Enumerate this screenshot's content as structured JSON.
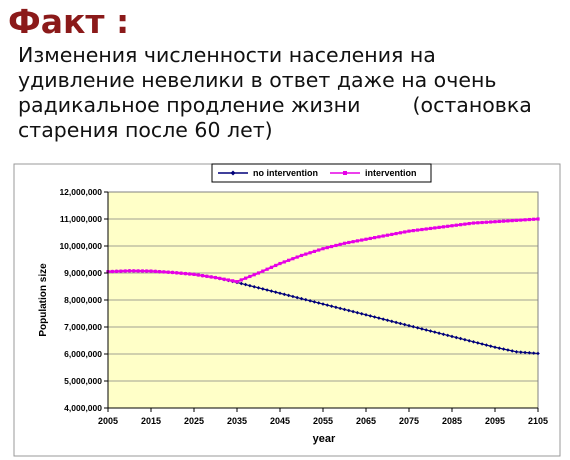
{
  "slide": {
    "heading": "Факт :",
    "subtitle_lines": [
      "Изменения численности населения на",
      "удивление невелики в ответ даже на очень",
      "радикальное продление жизни        (остановка",
      "старения после 60 лет)"
    ]
  },
  "chart_data": {
    "type": "line",
    "title": "",
    "xlabel": "year",
    "ylabel": "Population size",
    "xlim": [
      2005,
      2105
    ],
    "ylim": [
      4000000,
      12000000
    ],
    "x_ticks": [
      2005,
      2015,
      2025,
      2035,
      2045,
      2055,
      2065,
      2075,
      2085,
      2095,
      2105
    ],
    "y_ticks": [
      4000000,
      5000000,
      6000000,
      7000000,
      8000000,
      9000000,
      10000000,
      11000000,
      12000000
    ],
    "y_tick_labels": [
      "4,000,000",
      "5,000,000",
      "6,000,000",
      "7,000,000",
      "8,000,000",
      "9,000,000",
      "10,000,000",
      "11,000,000",
      "12,000,000"
    ],
    "grid": "horizontal",
    "legend_position": "top",
    "plot_background": "#ffffc8",
    "series": [
      {
        "name": "no intervention",
        "color": "#00007a",
        "marker": "diamond",
        "x": [
          2005,
          2010,
          2015,
          2020,
          2025,
          2030,
          2035,
          2040,
          2045,
          2050,
          2055,
          2060,
          2065,
          2070,
          2075,
          2080,
          2085,
          2090,
          2095,
          2100,
          2105
        ],
        "values": [
          9050000,
          9080000,
          9070000,
          9020000,
          8950000,
          8830000,
          8650000,
          8450000,
          8250000,
          8050000,
          7850000,
          7650000,
          7450000,
          7250000,
          7050000,
          6850000,
          6650000,
          6450000,
          6250000,
          6080000,
          6020000
        ]
      },
      {
        "name": "intervention",
        "color": "#e600e6",
        "marker": "square",
        "x": [
          2005,
          2010,
          2015,
          2020,
          2025,
          2030,
          2035,
          2040,
          2045,
          2050,
          2055,
          2060,
          2065,
          2070,
          2075,
          2080,
          2085,
          2090,
          2095,
          2100,
          2105
        ],
        "values": [
          9050000,
          9080000,
          9070000,
          9020000,
          8950000,
          8830000,
          8680000,
          9000000,
          9350000,
          9650000,
          9900000,
          10100000,
          10250000,
          10400000,
          10550000,
          10650000,
          10750000,
          10850000,
          10900000,
          10950000,
          11000000
        ]
      }
    ]
  }
}
